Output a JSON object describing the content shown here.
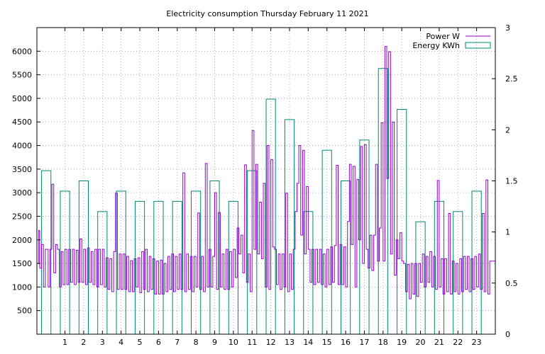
{
  "chart_data": {
    "type": "line",
    "title": "Electricity consumption Thursday February 11 2021",
    "xlim": [
      -0.5,
      24
    ],
    "x_ticks": [
      "1",
      "2",
      "3",
      "4",
      "5",
      "6",
      "7",
      "8",
      "9",
      "10",
      "11",
      "12",
      "13",
      "14",
      "15",
      "16",
      "17",
      "18",
      "19",
      "20",
      "21",
      "22",
      "23"
    ],
    "y_left": {
      "lim": [
        0,
        6500
      ],
      "ticks": [
        "500",
        "1000",
        "1500",
        "2000",
        "2500",
        "3000",
        "3500",
        "4000",
        "4500",
        "5000",
        "5500",
        "6000"
      ]
    },
    "y_right": {
      "lim": [
        0,
        3
      ],
      "ticks": [
        "0",
        "0.5",
        "1",
        "1.5",
        "2",
        "2.5",
        "3"
      ]
    },
    "grid": true,
    "legend_position": "top-right",
    "series": [
      {
        "name": "Power W",
        "axis": "left",
        "style": "steps",
        "color": "#9400D3",
        "points": [
          [
            -0.5,
            1500
          ],
          [
            -0.4,
            2200
          ],
          [
            -0.35,
            1400
          ],
          [
            -0.25,
            1900
          ],
          [
            -0.15,
            1000
          ],
          [
            -0.05,
            1800
          ],
          [
            0.1,
            1000
          ],
          [
            0.2,
            1800
          ],
          [
            0.3,
            3180
          ],
          [
            0.4,
            1300
          ],
          [
            0.5,
            1900
          ],
          [
            0.6,
            1800
          ],
          [
            0.7,
            1000
          ],
          [
            0.8,
            1750
          ],
          [
            0.9,
            1050
          ],
          [
            1.0,
            1800
          ],
          [
            1.1,
            1050
          ],
          [
            1.2,
            1800
          ],
          [
            1.3,
            1100
          ],
          [
            1.4,
            1800
          ],
          [
            1.5,
            1050
          ],
          [
            1.6,
            1780
          ],
          [
            1.7,
            1100
          ],
          [
            1.8,
            2020
          ],
          [
            1.9,
            1100
          ],
          [
            2.0,
            1800
          ],
          [
            2.1,
            1050
          ],
          [
            2.2,
            1830
          ],
          [
            2.3,
            1100
          ],
          [
            2.4,
            1750
          ],
          [
            2.5,
            1050
          ],
          [
            2.6,
            1800
          ],
          [
            2.7,
            1000
          ],
          [
            2.8,
            1800
          ],
          [
            2.9,
            1050
          ],
          [
            3.0,
            1800
          ],
          [
            3.1,
            1000
          ],
          [
            3.2,
            1620
          ],
          [
            3.3,
            950
          ],
          [
            3.4,
            1600
          ],
          [
            3.5,
            900
          ],
          [
            3.6,
            1750
          ],
          [
            3.7,
            2990
          ],
          [
            3.8,
            950
          ],
          [
            3.9,
            1700
          ],
          [
            4.0,
            950
          ],
          [
            4.1,
            1700
          ],
          [
            4.2,
            950
          ],
          [
            4.3,
            1650
          ],
          [
            4.4,
            900
          ],
          [
            4.5,
            1560
          ],
          [
            4.6,
            900
          ],
          [
            4.7,
            1600
          ],
          [
            4.8,
            1000
          ],
          [
            4.9,
            1620
          ],
          [
            5.0,
            880
          ],
          [
            5.1,
            1750
          ],
          [
            5.2,
            950
          ],
          [
            5.3,
            1800
          ],
          [
            5.4,
            900
          ],
          [
            5.5,
            1650
          ],
          [
            5.6,
            950
          ],
          [
            5.7,
            1600
          ],
          [
            5.8,
            850
          ],
          [
            5.9,
            1550
          ],
          [
            6.0,
            850
          ],
          [
            6.1,
            1570
          ],
          [
            6.2,
            850
          ],
          [
            6.3,
            1500
          ],
          [
            6.4,
            900
          ],
          [
            6.5,
            1650
          ],
          [
            6.6,
            950
          ],
          [
            6.7,
            1700
          ],
          [
            6.8,
            900
          ],
          [
            6.9,
            1650
          ],
          [
            7.0,
            950
          ],
          [
            7.1,
            1700
          ],
          [
            7.2,
            950
          ],
          [
            7.3,
            3420
          ],
          [
            7.4,
            900
          ],
          [
            7.5,
            1700
          ],
          [
            7.6,
            950
          ],
          [
            7.7,
            1650
          ],
          [
            7.8,
            900
          ],
          [
            7.9,
            1650
          ],
          [
            8.0,
            1000
          ],
          [
            8.1,
            2570
          ],
          [
            8.2,
            950
          ],
          [
            8.3,
            1650
          ],
          [
            8.4,
            900
          ],
          [
            8.5,
            3620
          ],
          [
            8.6,
            1000
          ],
          [
            8.7,
            1800
          ],
          [
            8.8,
            1000
          ],
          [
            8.9,
            1650
          ],
          [
            9.0,
            3000
          ],
          [
            9.1,
            950
          ],
          [
            9.2,
            2580
          ],
          [
            9.3,
            1000
          ],
          [
            9.4,
            1700
          ],
          [
            9.5,
            950
          ],
          [
            9.6,
            1800
          ],
          [
            9.7,
            950
          ],
          [
            9.8,
            1750
          ],
          [
            9.9,
            1000
          ],
          [
            10.0,
            1800
          ],
          [
            10.1,
            1200
          ],
          [
            10.2,
            2250
          ],
          [
            10.3,
            1700
          ],
          [
            10.4,
            2100
          ],
          [
            10.5,
            1300
          ],
          [
            10.6,
            3590
          ],
          [
            10.7,
            1100
          ],
          [
            10.8,
            1700
          ],
          [
            10.9,
            900
          ],
          [
            11.0,
            4320
          ],
          [
            11.1,
            1800
          ],
          [
            11.2,
            3600
          ],
          [
            11.3,
            1700
          ],
          [
            11.4,
            2800
          ],
          [
            11.5,
            1600
          ],
          [
            11.6,
            3200
          ],
          [
            11.7,
            1000
          ],
          [
            11.8,
            4000
          ],
          [
            11.9,
            950
          ],
          [
            12.0,
            3700
          ],
          [
            12.1,
            1850
          ],
          [
            12.2,
            1800
          ],
          [
            12.3,
            1050
          ],
          [
            12.4,
            1700
          ],
          [
            12.5,
            950
          ],
          [
            12.6,
            1700
          ],
          [
            12.7,
            1000
          ],
          [
            12.8,
            2990
          ],
          [
            12.9,
            900
          ],
          [
            13.0,
            1700
          ],
          [
            13.1,
            950
          ],
          [
            13.2,
            1800
          ],
          [
            13.3,
            2600
          ],
          [
            13.4,
            3200
          ],
          [
            13.5,
            4000
          ],
          [
            13.6,
            2100
          ],
          [
            13.7,
            3900
          ],
          [
            13.8,
            1700
          ],
          [
            13.9,
            3130
          ],
          [
            14.0,
            1800
          ],
          [
            14.1,
            1100
          ],
          [
            14.2,
            1800
          ],
          [
            14.3,
            1050
          ],
          [
            14.4,
            1800
          ],
          [
            14.5,
            1100
          ],
          [
            14.6,
            1800
          ],
          [
            14.7,
            1050
          ],
          [
            14.8,
            1700
          ],
          [
            14.9,
            1000
          ],
          [
            15.0,
            1800
          ],
          [
            15.1,
            1050
          ],
          [
            15.2,
            1850
          ],
          [
            15.3,
            1100
          ],
          [
            15.4,
            1880
          ],
          [
            15.5,
            3580
          ],
          [
            15.6,
            1050
          ],
          [
            15.7,
            1900
          ],
          [
            15.8,
            1050
          ],
          [
            15.9,
            1850
          ],
          [
            16.0,
            1000
          ],
          [
            16.1,
            2390
          ],
          [
            16.2,
            3600
          ],
          [
            16.3,
            1900
          ],
          [
            16.4,
            3560
          ],
          [
            16.5,
            1000
          ],
          [
            16.6,
            3280
          ],
          [
            16.7,
            2000
          ],
          [
            16.8,
            3980
          ],
          [
            16.9,
            1500
          ],
          [
            17.0,
            4020
          ],
          [
            17.1,
            1800
          ],
          [
            17.2,
            1400
          ],
          [
            17.3,
            2100
          ],
          [
            17.4,
            1350
          ],
          [
            17.5,
            2100
          ],
          [
            17.6,
            3600
          ],
          [
            17.7,
            1550
          ],
          [
            17.8,
            2250
          ],
          [
            17.9,
            4480
          ],
          [
            18.0,
            1550
          ],
          [
            18.1,
            6100
          ],
          [
            18.2,
            3300
          ],
          [
            18.3,
            5990
          ],
          [
            18.4,
            1700
          ],
          [
            18.5,
            4500
          ],
          [
            18.6,
            1250
          ],
          [
            18.7,
            2000
          ],
          [
            18.8,
            1600
          ],
          [
            18.9,
            2150
          ],
          [
            19.0,
            1550
          ],
          [
            19.1,
            1500
          ],
          [
            19.2,
            900
          ],
          [
            19.3,
            1480
          ],
          [
            19.4,
            750
          ],
          [
            19.5,
            1500
          ],
          [
            19.6,
            850
          ],
          [
            19.7,
            1500
          ],
          [
            19.8,
            800
          ],
          [
            19.9,
            1500
          ],
          [
            20.0,
            1100
          ],
          [
            20.1,
            1700
          ],
          [
            20.2,
            1000
          ],
          [
            20.3,
            1650
          ],
          [
            20.4,
            1100
          ],
          [
            20.5,
            1750
          ],
          [
            20.6,
            1000
          ],
          [
            20.7,
            1650
          ],
          [
            20.8,
            950
          ],
          [
            20.9,
            3260
          ],
          [
            21.0,
            1000
          ],
          [
            21.1,
            1600
          ],
          [
            21.2,
            850
          ],
          [
            21.3,
            1600
          ],
          [
            21.4,
            900
          ],
          [
            21.5,
            2560
          ],
          [
            21.6,
            850
          ],
          [
            21.7,
            1550
          ],
          [
            21.8,
            900
          ],
          [
            21.9,
            1500
          ],
          [
            22.0,
            850
          ],
          [
            22.1,
            1600
          ],
          [
            22.2,
            900
          ],
          [
            22.3,
            1650
          ],
          [
            22.4,
            950
          ],
          [
            22.5,
            1650
          ],
          [
            22.6,
            900
          ],
          [
            22.7,
            1600
          ],
          [
            22.8,
            950
          ],
          [
            22.9,
            1650
          ],
          [
            23.0,
            1000
          ],
          [
            23.1,
            1700
          ],
          [
            23.2,
            950
          ],
          [
            23.3,
            2560
          ],
          [
            23.4,
            900
          ],
          [
            23.5,
            3270
          ],
          [
            23.6,
            850
          ],
          [
            23.7,
            1550
          ],
          [
            24.0,
            1550
          ]
        ]
      },
      {
        "name": "Energy KWh",
        "axis": "right",
        "style": "boxes",
        "color": "#00896F",
        "bar_width": 0.5,
        "bars": [
          [
            0,
            1.6
          ],
          [
            1,
            1.4
          ],
          [
            2,
            1.5
          ],
          [
            3,
            1.2
          ],
          [
            4,
            1.4
          ],
          [
            5,
            1.3
          ],
          [
            6,
            1.3
          ],
          [
            7,
            1.3
          ],
          [
            8,
            1.4
          ],
          [
            9,
            1.5
          ],
          [
            10,
            1.3
          ],
          [
            11,
            1.6
          ],
          [
            12,
            2.3
          ],
          [
            13,
            2.1
          ],
          [
            14,
            1.2
          ],
          [
            15,
            1.8
          ],
          [
            16,
            1.5
          ],
          [
            17,
            1.9
          ],
          [
            18,
            2.6
          ],
          [
            19,
            2.2
          ],
          [
            20,
            1.1
          ],
          [
            21,
            1.3
          ],
          [
            22,
            1.2
          ],
          [
            23,
            1.4
          ]
        ]
      }
    ]
  }
}
